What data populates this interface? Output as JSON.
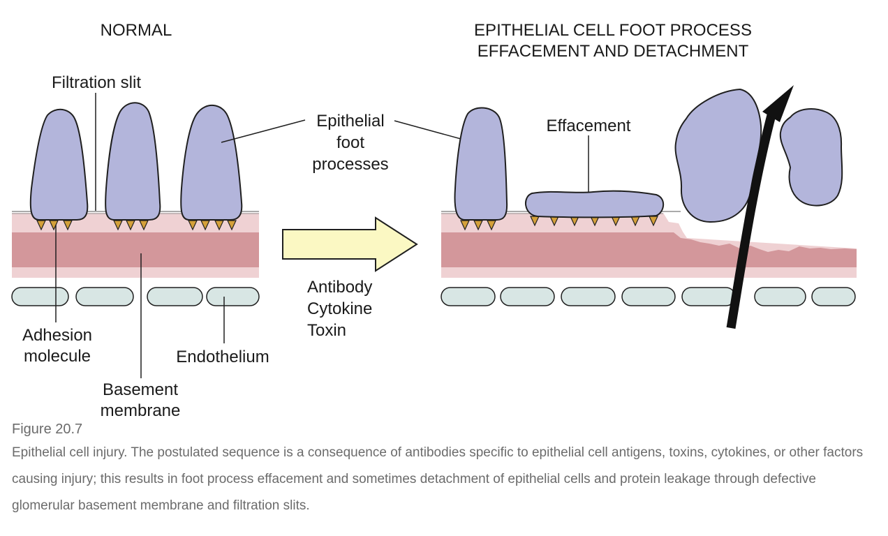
{
  "diagram": {
    "left_title": "NORMAL",
    "right_title_line1": "EPITHELIAL CELL FOOT PROCESS",
    "right_title_line2": "EFFACEMENT AND DETACHMENT",
    "labels": {
      "filtration_slit": "Filtration slit",
      "epithelial_1": "Epithelial",
      "epithelial_2": "foot",
      "epithelial_3": "processes",
      "effacement": "Effacement",
      "adhesion_1": "Adhesion",
      "adhesion_2": "molecule",
      "endothelium": "Endothelium",
      "basement_1": "Basement",
      "basement_2": "membrane",
      "causes": [
        "Antibody",
        "Cytokine",
        "Toxin"
      ]
    },
    "colors": {
      "foot_process": "#b3b5db",
      "outline": "#1f1f1f",
      "membrane_light": "#efd1d3",
      "membrane_dark": "#d3979b",
      "endothelium": "#d8e6e4",
      "adhesion": "#d4a03a",
      "arrow_fill": "#fbf8c3"
    }
  },
  "caption": {
    "figure_number": "Figure 20.7",
    "text": "Epithelial cell injury. The postulated sequence is a consequence of antibodies specific to epithelial cell antigens, toxins, cytokines, or other factors causing injury; this results in foot process effacement and sometimes detachment of epithelial cells and protein leakage through defective glomerular basement membrane and filtration slits."
  }
}
